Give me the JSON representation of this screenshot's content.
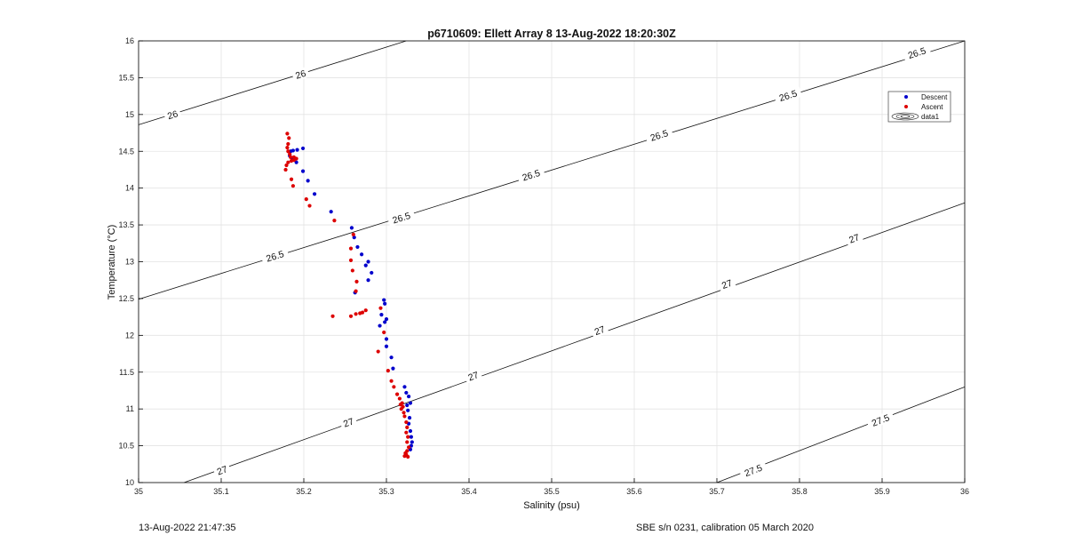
{
  "footer": {
    "timestamp": "13-Aug-2022 21:47:35",
    "calibration": "SBE s/n 0231, calibration 05 March 2020"
  },
  "chart_data": {
    "type": "scatter",
    "title": "p6710609: Ellett Array 8 13-Aug-2022 18:20:30Z",
    "xlabel": "Salinity (psu)",
    "ylabel": "Temperature (°C)",
    "xlim": [
      35,
      36
    ],
    "ylim": [
      10,
      16
    ],
    "xticks": [
      "35",
      "35.1",
      "35.2",
      "35.3",
      "35.4",
      "35.5",
      "35.6",
      "35.7",
      "35.8",
      "35.9",
      "36"
    ],
    "yticks": [
      "10",
      "10.5",
      "11",
      "11.5",
      "12",
      "12.5",
      "13",
      "13.5",
      "14",
      "14.5",
      "15",
      "15.5",
      "16"
    ],
    "grid": true,
    "legend_position": "top-right",
    "series": [
      {
        "name": "Descent",
        "color": "#0000cc",
        "marker": "dot",
        "points": [
          [
            35.199,
            14.54
          ],
          [
            35.192,
            14.52
          ],
          [
            35.187,
            14.51
          ],
          [
            35.184,
            14.5
          ],
          [
            35.183,
            14.44
          ],
          [
            35.186,
            14.4
          ],
          [
            35.191,
            14.35
          ],
          [
            35.199,
            14.23
          ],
          [
            35.205,
            14.1
          ],
          [
            35.213,
            13.92
          ],
          [
            35.233,
            13.68
          ],
          [
            35.258,
            13.46
          ],
          [
            35.261,
            13.33
          ],
          [
            35.265,
            13.2
          ],
          [
            35.27,
            13.1
          ],
          [
            35.278,
            13.0
          ],
          [
            35.275,
            12.95
          ],
          [
            35.282,
            12.85
          ],
          [
            35.278,
            12.75
          ],
          [
            35.262,
            12.58
          ],
          [
            35.297,
            12.48
          ],
          [
            35.298,
            12.43
          ],
          [
            35.294,
            12.28
          ],
          [
            35.3,
            12.22
          ],
          [
            35.298,
            12.18
          ],
          [
            35.292,
            12.13
          ],
          [
            35.3,
            11.95
          ],
          [
            35.3,
            11.85
          ],
          [
            35.306,
            11.7
          ],
          [
            35.308,
            11.55
          ],
          [
            35.322,
            11.3
          ],
          [
            35.324,
            11.22
          ],
          [
            35.327,
            11.17
          ],
          [
            35.329,
            11.08
          ],
          [
            35.325,
            11.05
          ],
          [
            35.326,
            10.98
          ],
          [
            35.328,
            10.88
          ],
          [
            35.327,
            10.8
          ],
          [
            35.329,
            10.7
          ],
          [
            35.33,
            10.62
          ],
          [
            35.331,
            10.55
          ],
          [
            35.33,
            10.5
          ],
          [
            35.329,
            10.45
          ]
        ]
      },
      {
        "name": "Ascent",
        "color": "#dd0000",
        "marker": "dot",
        "points": [
          [
            35.18,
            14.74
          ],
          [
            35.182,
            14.68
          ],
          [
            35.181,
            14.6
          ],
          [
            35.18,
            14.55
          ],
          [
            35.181,
            14.5
          ],
          [
            35.183,
            14.46
          ],
          [
            35.184,
            14.42
          ],
          [
            35.188,
            14.42
          ],
          [
            35.191,
            14.4
          ],
          [
            35.188,
            14.38
          ],
          [
            35.185,
            14.37
          ],
          [
            35.181,
            14.35
          ],
          [
            35.179,
            14.31
          ],
          [
            35.178,
            14.25
          ],
          [
            35.185,
            14.12
          ],
          [
            35.187,
            14.03
          ],
          [
            35.203,
            13.85
          ],
          [
            35.207,
            13.76
          ],
          [
            35.237,
            13.56
          ],
          [
            35.26,
            13.37
          ],
          [
            35.257,
            13.18
          ],
          [
            35.257,
            13.02
          ],
          [
            35.259,
            12.88
          ],
          [
            35.264,
            12.73
          ],
          [
            35.263,
            12.6
          ],
          [
            35.235,
            12.26
          ],
          [
            35.257,
            12.26
          ],
          [
            35.263,
            12.29
          ],
          [
            35.268,
            12.3
          ],
          [
            35.271,
            12.31
          ],
          [
            35.275,
            12.34
          ],
          [
            35.293,
            12.37
          ],
          [
            35.297,
            12.04
          ],
          [
            35.29,
            11.78
          ],
          [
            35.302,
            11.52
          ],
          [
            35.306,
            11.38
          ],
          [
            35.309,
            11.3
          ],
          [
            35.313,
            11.2
          ],
          [
            35.316,
            11.14
          ],
          [
            35.319,
            11.08
          ],
          [
            35.318,
            11.0
          ],
          [
            35.321,
            10.95
          ],
          [
            35.322,
            10.9
          ],
          [
            35.324,
            10.82
          ],
          [
            35.325,
            10.75
          ],
          [
            35.324,
            10.68
          ],
          [
            35.326,
            10.62
          ],
          [
            35.325,
            10.55
          ],
          [
            35.327,
            10.48
          ],
          [
            35.325,
            10.43
          ],
          [
            35.324,
            10.38
          ],
          [
            35.322,
            10.36
          ],
          [
            35.323,
            10.4
          ],
          [
            35.326,
            10.35
          ],
          [
            35.32,
            11.03
          ],
          [
            35.317,
            11.06
          ]
        ]
      }
    ],
    "density_contours": [
      {
        "sigma": 26.0,
        "line": [
          [
            35.0,
            14.86
          ],
          [
            35.324,
            16.0
          ]
        ],
        "labels": [
          {
            "text": "26",
            "at": [
              35.041,
              15.0
            ]
          },
          {
            "text": "26",
            "at": [
              35.196,
              15.55
            ]
          }
        ]
      },
      {
        "sigma": 26.5,
        "line": [
          [
            35.0,
            12.49
          ],
          [
            36.0,
            16.0
          ]
        ],
        "labels": [
          {
            "text": "26.5",
            "at": [
              35.165,
              13.08
            ]
          },
          {
            "text": "26.5",
            "at": [
              35.318,
              13.6
            ]
          },
          {
            "text": "26.5",
            "at": [
              35.475,
              14.18
            ]
          },
          {
            "text": "26.5",
            "at": [
              35.63,
              14.72
            ]
          },
          {
            "text": "26.5",
            "at": [
              35.786,
              15.26
            ]
          },
          {
            "text": "26.5",
            "at": [
              35.942,
              15.84
            ]
          }
        ]
      },
      {
        "sigma": 27.0,
        "line": [
          [
            35.055,
            10.0
          ],
          [
            36.0,
            13.8
          ]
        ],
        "labels": [
          {
            "text": "27",
            "at": [
              35.101,
              10.17
            ]
          },
          {
            "text": "27",
            "at": [
              35.254,
              10.82
            ]
          },
          {
            "text": "27",
            "at": [
              35.405,
              11.45
            ]
          },
          {
            "text": "27",
            "at": [
              35.558,
              12.07
            ]
          },
          {
            "text": "27",
            "at": [
              35.712,
              12.7
            ]
          },
          {
            "text": "27",
            "at": [
              35.866,
              13.32
            ]
          }
        ]
      },
      {
        "sigma": 27.5,
        "line": [
          [
            35.7,
            10.0
          ],
          [
            36.0,
            11.3
          ]
        ],
        "labels": [
          {
            "text": "27.5",
            "at": [
              35.744,
              10.17
            ]
          },
          {
            "text": "27.5",
            "at": [
              35.898,
              10.85
            ]
          }
        ]
      }
    ],
    "legend": [
      "Descent",
      "Ascent",
      "data1"
    ]
  }
}
